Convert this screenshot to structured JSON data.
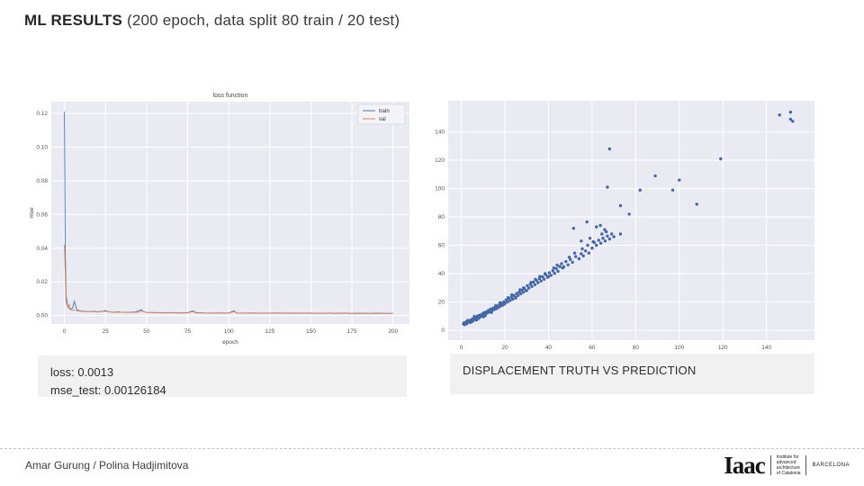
{
  "slide": {
    "title_bold": "ML RESULTS",
    "title_rest": " (200 epoch, data split 80 train / 20 test)"
  },
  "captions": {
    "left_line1": "loss: 0.0013",
    "left_line2": "mse_test: 0.00126184",
    "right": "DISPLACEMENT TRUTH VS PREDICTION"
  },
  "footer": {
    "authors": "Amar Gurung /  Polina Hadjimitova",
    "logo_word": "Iaac",
    "logo_sub": [
      "Institute for",
      "advanced",
      "architecture",
      "of Catalonia"
    ],
    "logo_city": "BARCELONA"
  },
  "colors": {
    "plot_bg": "#eaebf2",
    "grid": "#ffffff",
    "train": "#4c72b0",
    "val": "#dd8452",
    "scatter": "#4468a8",
    "tick_text": "#555555",
    "caption_bg": "#f1f1f2"
  },
  "chart_data": [
    {
      "type": "line",
      "title": "loss function",
      "xlabel": "epoch",
      "ylabel": "mse",
      "xlim": [
        -8,
        210
      ],
      "ylim": [
        -0.005,
        0.127
      ],
      "xtick_vals": [
        0,
        25,
        50,
        75,
        100,
        125,
        150,
        175,
        200
      ],
      "xtick_labels": [
        "0",
        "25",
        "50",
        "75",
        "100",
        "125",
        "150",
        "175",
        "200"
      ],
      "ytick_vals": [
        0.0,
        0.02,
        0.04,
        0.06,
        0.08,
        0.1,
        0.12
      ],
      "ytick_labels": [
        "0.00",
        "0.02",
        "0.04",
        "0.06",
        "0.08",
        "0.10",
        "0.12"
      ],
      "grid": true,
      "legend_position": "upper right",
      "series": [
        {
          "name": "train",
          "color": "#4c72b0",
          "points": [
            [
              0,
              0.121
            ],
            [
              0.5,
              0.04
            ],
            [
              1,
              0.012
            ],
            [
              2,
              0.0055
            ],
            [
              3,
              0.004
            ],
            [
              4,
              0.0035
            ],
            [
              5,
              0.0045
            ],
            [
              6,
              0.0085
            ],
            [
              7,
              0.005
            ],
            [
              8,
              0.0032
            ],
            [
              10,
              0.0028
            ],
            [
              12,
              0.0026
            ],
            [
              15,
              0.0024
            ],
            [
              18,
              0.0026
            ],
            [
              20,
              0.0022
            ],
            [
              23,
              0.0025
            ],
            [
              25,
              0.003
            ],
            [
              27,
              0.0022
            ],
            [
              30,
              0.002
            ],
            [
              33,
              0.0022
            ],
            [
              35,
              0.0019
            ],
            [
              38,
              0.002
            ],
            [
              40,
              0.0019
            ],
            [
              43,
              0.0021
            ],
            [
              46,
              0.0032
            ],
            [
              47,
              0.0035
            ],
            [
              48,
              0.0024
            ],
            [
              50,
              0.0019
            ],
            [
              55,
              0.0018
            ],
            [
              60,
              0.0017
            ],
            [
              65,
              0.0018
            ],
            [
              70,
              0.0016
            ],
            [
              75,
              0.0017
            ],
            [
              78,
              0.0028
            ],
            [
              80,
              0.0018
            ],
            [
              85,
              0.0016
            ],
            [
              90,
              0.0015
            ],
            [
              95,
              0.0016
            ],
            [
              100,
              0.0015
            ],
            [
              103,
              0.0028
            ],
            [
              105,
              0.0016
            ],
            [
              110,
              0.0015
            ],
            [
              115,
              0.0016
            ],
            [
              120,
              0.0014
            ],
            [
              125,
              0.0015
            ],
            [
              130,
              0.0016
            ],
            [
              135,
              0.0014
            ],
            [
              140,
              0.0015
            ],
            [
              145,
              0.0014
            ],
            [
              150,
              0.0015
            ],
            [
              155,
              0.0013
            ],
            [
              160,
              0.0015
            ],
            [
              165,
              0.0013
            ],
            [
              170,
              0.0014
            ],
            [
              175,
              0.0013
            ],
            [
              180,
              0.0014
            ],
            [
              185,
              0.0013
            ],
            [
              190,
              0.0014
            ],
            [
              195,
              0.0013
            ],
            [
              200,
              0.0013
            ]
          ]
        },
        {
          "name": "val",
          "color": "#dd8452",
          "points": [
            [
              0,
              0.042
            ],
            [
              1,
              0.008
            ],
            [
              2,
              0.005
            ],
            [
              3,
              0.0065
            ],
            [
              4,
              0.0035
            ],
            [
              5,
              0.003
            ],
            [
              6,
              0.0035
            ],
            [
              7,
              0.003
            ],
            [
              8,
              0.0028
            ],
            [
              10,
              0.0026
            ],
            [
              12,
              0.0024
            ],
            [
              15,
              0.0023
            ],
            [
              18,
              0.0024
            ],
            [
              20,
              0.0021
            ],
            [
              25,
              0.0026
            ],
            [
              30,
              0.0019
            ],
            [
              35,
              0.002
            ],
            [
              40,
              0.0018
            ],
            [
              45,
              0.002
            ],
            [
              47,
              0.0028
            ],
            [
              50,
              0.0018
            ],
            [
              55,
              0.0017
            ],
            [
              60,
              0.0016
            ],
            [
              65,
              0.0017
            ],
            [
              70,
              0.0015
            ],
            [
              75,
              0.0016
            ],
            [
              78,
              0.0024
            ],
            [
              80,
              0.0016
            ],
            [
              85,
              0.0015
            ],
            [
              90,
              0.0014
            ],
            [
              95,
              0.0015
            ],
            [
              100,
              0.0014
            ],
            [
              103,
              0.0024
            ],
            [
              105,
              0.0015
            ],
            [
              110,
              0.0014
            ],
            [
              115,
              0.0015
            ],
            [
              120,
              0.0013
            ],
            [
              125,
              0.0014
            ],
            [
              130,
              0.0015
            ],
            [
              135,
              0.0013
            ],
            [
              140,
              0.0014
            ],
            [
              145,
              0.0013
            ],
            [
              150,
              0.0014
            ],
            [
              155,
              0.0013
            ],
            [
              160,
              0.0014
            ],
            [
              165,
              0.0012
            ],
            [
              170,
              0.0013
            ],
            [
              175,
              0.0012
            ],
            [
              180,
              0.0013
            ],
            [
              185,
              0.0012
            ],
            [
              190,
              0.0013
            ],
            [
              195,
              0.0012
            ],
            [
              200,
              0.0013
            ]
          ]
        }
      ]
    },
    {
      "type": "scatter",
      "title": "",
      "xlabel": "",
      "ylabel": "",
      "xlim": [
        -6,
        162
      ],
      "ylim": [
        -7,
        162
      ],
      "xtick_vals": [
        0,
        20,
        40,
        60,
        80,
        100,
        120,
        140
      ],
      "xtick_labels": [
        "0",
        "20",
        "40",
        "60",
        "80",
        "100",
        "120",
        "140"
      ],
      "ytick_vals": [
        0,
        20,
        40,
        60,
        80,
        100,
        120,
        140
      ],
      "ytick_labels": [
        "0",
        "20",
        "40",
        "60",
        "80",
        "100",
        "120",
        "140"
      ],
      "grid": true,
      "marker_size": 1.7,
      "color": "#4468a8",
      "points": [
        [
          1,
          4.5
        ],
        [
          1.2,
          5.2
        ],
        [
          1.5,
          4
        ],
        [
          2,
          5
        ],
        [
          2.3,
          6
        ],
        [
          2.5,
          4.6
        ],
        [
          2.8,
          5.5
        ],
        [
          3,
          7
        ],
        [
          3.2,
          6.5
        ],
        [
          3.6,
          5.8
        ],
        [
          4,
          7
        ],
        [
          4.2,
          5.5
        ],
        [
          4.4,
          6.2
        ],
        [
          4.8,
          7.5
        ],
        [
          5,
          6.2
        ],
        [
          5.2,
          8
        ],
        [
          5.5,
          7
        ],
        [
          5.9,
          8.8
        ],
        [
          6,
          9.8
        ],
        [
          6.3,
          7.6
        ],
        [
          6.7,
          9
        ],
        [
          7,
          7.2
        ],
        [
          7.1,
          8.2
        ],
        [
          7.5,
          10
        ],
        [
          7.9,
          9
        ],
        [
          8,
          8.4
        ],
        [
          8.3,
          10.5
        ],
        [
          8.7,
          9.6
        ],
        [
          9,
          9.8
        ],
        [
          9.1,
          11
        ],
        [
          9.5,
          10.2
        ],
        [
          10,
          12
        ],
        [
          10.2,
          9.5
        ],
        [
          10.4,
          11
        ],
        [
          10.8,
          12.6
        ],
        [
          11,
          10.4
        ],
        [
          11.2,
          11.8
        ],
        [
          11.6,
          13
        ],
        [
          12,
          12.2
        ],
        [
          12.2,
          13.4
        ],
        [
          12.5,
          14
        ],
        [
          13,
          13
        ],
        [
          13.5,
          15
        ],
        [
          13.8,
          12.6
        ],
        [
          14,
          13.8
        ],
        [
          14.5,
          15.5
        ],
        [
          15,
          14.6
        ],
        [
          15.5,
          16.4
        ],
        [
          15.8,
          17.5
        ],
        [
          16,
          15.2
        ],
        [
          16.5,
          17
        ],
        [
          17,
          16
        ],
        [
          17.5,
          18.2
        ],
        [
          17.8,
          19.5
        ],
        [
          18,
          17
        ],
        [
          18.5,
          19
        ],
        [
          19,
          17.8
        ],
        [
          19.5,
          20
        ],
        [
          19.8,
          18.5
        ],
        [
          20,
          19
        ],
        [
          20.6,
          21.5
        ],
        [
          21.2,
          20
        ],
        [
          21.5,
          23
        ],
        [
          21.8,
          22.4
        ],
        [
          22.4,
          21
        ],
        [
          23,
          23.5
        ],
        [
          23.2,
          25
        ],
        [
          23.6,
          22
        ],
        [
          24.2,
          24.6
        ],
        [
          24.8,
          23.2
        ],
        [
          25,
          22.8
        ],
        [
          25.4,
          26
        ],
        [
          26,
          24.5
        ],
        [
          26.6,
          27
        ],
        [
          27,
          28.6
        ],
        [
          27.2,
          25.8
        ],
        [
          27.8,
          28.3
        ],
        [
          28.4,
          26.8
        ],
        [
          28.6,
          30
        ],
        [
          29,
          29.5
        ],
        [
          29.6,
          28
        ],
        [
          30,
          28
        ],
        [
          30.3,
          31.5
        ],
        [
          31,
          29.8
        ],
        [
          31.7,
          32.6
        ],
        [
          32,
          33.8
        ],
        [
          32.4,
          31
        ],
        [
          33.1,
          34
        ],
        [
          33.8,
          32.2
        ],
        [
          34,
          36
        ],
        [
          34.5,
          35.3
        ],
        [
          35.2,
          33.6
        ],
        [
          35.9,
          36.5
        ],
        [
          36,
          38
        ],
        [
          36.6,
          34.8
        ],
        [
          37.3,
          37.8
        ],
        [
          38,
          36
        ],
        [
          38.4,
          40
        ],
        [
          38.8,
          39.2
        ],
        [
          39.6,
          37.4
        ],
        [
          40,
          38
        ],
        [
          40.4,
          40.6
        ],
        [
          41.2,
          38.8
        ],
        [
          42,
          42
        ],
        [
          42.4,
          44
        ],
        [
          42.8,
          40.2
        ],
        [
          43.6,
          43.5
        ],
        [
          44,
          46
        ],
        [
          44.4,
          41.6
        ],
        [
          45.2,
          45
        ],
        [
          46,
          47
        ],
        [
          46.5,
          44
        ],
        [
          47,
          44.8
        ],
        [
          48,
          48.5
        ],
        [
          49,
          46.2
        ],
        [
          49.5,
          51.6
        ],
        [
          50,
          50
        ],
        [
          51,
          48
        ],
        [
          52,
          54.5
        ],
        [
          52.5,
          52
        ],
        [
          54,
          50.5
        ],
        [
          55,
          54
        ],
        [
          55.5,
          57.5
        ],
        [
          56,
          52.5
        ],
        [
          57,
          56
        ],
        [
          58,
          60
        ],
        [
          58.5,
          54.5
        ],
        [
          60,
          58
        ],
        [
          60.5,
          62.5
        ],
        [
          61,
          62
        ],
        [
          62,
          60
        ],
        [
          63,
          63.5
        ],
        [
          64,
          61.5
        ],
        [
          65,
          65
        ],
        [
          66,
          63
        ],
        [
          67,
          66.5
        ],
        [
          68,
          64.5
        ],
        [
          69,
          68
        ],
        [
          70,
          66
        ],
        [
          51.5,
          72
        ],
        [
          57.6,
          76.5
        ],
        [
          62,
          73
        ],
        [
          63.8,
          74
        ],
        [
          65.8,
          71
        ],
        [
          66.5,
          69.5
        ],
        [
          64.5,
          68
        ],
        [
          59,
          65
        ],
        [
          55,
          63
        ],
        [
          67,
          101
        ],
        [
          68,
          128
        ],
        [
          73,
          88
        ],
        [
          77,
          82
        ],
        [
          73,
          68
        ],
        [
          82,
          99
        ],
        [
          89,
          109
        ],
        [
          97,
          99
        ],
        [
          100,
          106
        ],
        [
          108,
          89
        ],
        [
          119,
          121
        ],
        [
          146,
          152
        ],
        [
          151,
          154
        ],
        [
          151,
          149
        ],
        [
          152,
          147.5
        ]
      ]
    }
  ]
}
